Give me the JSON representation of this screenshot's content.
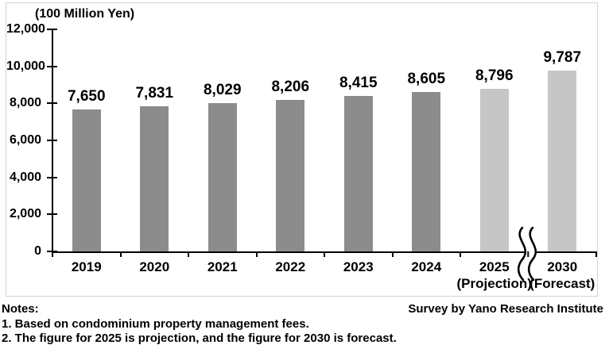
{
  "chart_data": {
    "type": "bar",
    "title": "",
    "ylabel": "(100 Million Yen)",
    "ylim": [
      0,
      12000
    ],
    "yticks": [
      0,
      2000,
      4000,
      6000,
      8000,
      10000,
      12000
    ],
    "grid": false,
    "legend": "none",
    "categories": [
      "2019",
      "2020",
      "2021",
      "2022",
      "2023",
      "2024",
      "2025 (Projection)",
      "2030 (Forecast)"
    ],
    "category_label_lines": [
      [
        "2019"
      ],
      [
        "2020"
      ],
      [
        "2021"
      ],
      [
        "2022"
      ],
      [
        "2023"
      ],
      [
        "2024"
      ],
      [
        "2025",
        "(Projection)"
      ],
      [
        "2030",
        "(Forecast)"
      ]
    ],
    "values": [
      7650,
      7831,
      8029,
      8206,
      8415,
      8605,
      8796,
      9787
    ],
    "value_labels": [
      "7,650",
      "7,831",
      "8,029",
      "8,206",
      "8,415",
      "8,605",
      "8,796",
      "9,787"
    ],
    "bar_types": [
      "actual",
      "actual",
      "actual",
      "actual",
      "actual",
      "actual",
      "projection",
      "forecast"
    ],
    "bar_colors": {
      "actual": "#8c8c8c",
      "projection": "#c6c6c6",
      "forecast": "#c6c6c6"
    },
    "axis_break": {
      "boundary_index": 7,
      "between": [
        "2025 (Projection)",
        "2030 (Forecast)"
      ]
    }
  },
  "notes": {
    "heading": "Notes:",
    "survey_credit": "Survey by Yano Research Institute",
    "items": [
      "1. Based on condominium property management fees.",
      "2. The figure for 2025 is projection, and the figure for 2030 is forecast."
    ]
  }
}
